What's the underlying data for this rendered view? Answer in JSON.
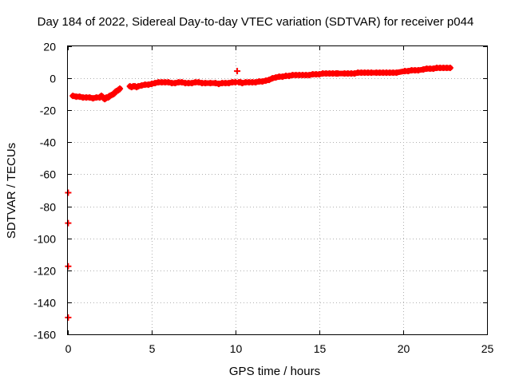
{
  "chart_data": {
    "type": "scatter",
    "title": "Day 184 of 2022, Sidereal Day-to-day VTEC variation (SDTVAR) for receiver p044",
    "xlabel": "GPS time / hours",
    "ylabel": "SDTVAR / TECUs",
    "xlim": [
      0,
      25
    ],
    "ylim": [
      -160,
      20
    ],
    "xticks": [
      0,
      5,
      10,
      15,
      20,
      25
    ],
    "yticks": [
      20,
      0,
      -20,
      -40,
      -60,
      -80,
      -100,
      -120,
      -140,
      -160
    ],
    "grid": true,
    "legend": "none",
    "marker": "plus",
    "series": [
      {
        "name": "SDTVAR",
        "color": "#ff0000",
        "x": [
          0.3,
          0.5,
          0.7,
          0.9,
          1.1,
          1.3,
          1.5,
          1.7,
          1.9,
          2.0,
          2.1,
          2.2,
          2.3,
          2.4,
          2.5,
          2.6,
          2.7,
          2.8,
          2.9,
          3.0,
          3.1,
          3.7,
          3.8,
          3.9,
          4.0,
          4.1,
          4.2,
          4.4,
          4.6,
          4.8,
          5.0,
          5.2,
          5.4,
          5.6,
          5.8,
          6.0,
          6.2,
          6.4,
          6.6,
          6.8,
          7.0,
          7.2,
          7.4,
          7.6,
          7.8,
          8.0,
          8.2,
          8.5,
          8.8,
          9.0,
          9.2,
          9.4,
          9.6,
          9.8,
          10.0,
          10.1,
          10.2,
          10.3,
          10.4,
          10.6,
          10.8,
          11.0,
          11.2,
          11.4,
          11.6,
          11.8,
          12.0,
          12.2,
          12.4,
          12.6,
          12.8,
          13.0,
          13.2,
          13.4,
          13.6,
          13.8,
          14.0,
          14.2,
          14.4,
          14.6,
          14.8,
          15.0,
          15.2,
          15.4,
          15.6,
          15.8,
          16.0,
          16.1,
          16.5,
          16.7,
          16.9,
          17.1,
          17.3,
          17.5,
          17.7,
          17.9,
          18.1,
          18.4,
          18.6,
          18.8,
          19.0,
          19.2,
          19.4,
          19.6,
          20.1,
          20.3,
          20.5,
          20.7,
          20.9,
          21.2,
          21.4,
          21.6,
          21.8,
          22.0,
          22.2,
          22.4,
          22.6,
          22.8,
          0.02,
          0.02,
          0.02,
          0.02
        ],
        "y": [
          -11,
          -11.5,
          -11.5,
          -12,
          -12,
          -12,
          -12.5,
          -12,
          -12,
          -11,
          -12,
          -13,
          -12,
          -12,
          -11,
          -10.5,
          -10,
          -9,
          -8,
          -7.5,
          -6.5,
          -5,
          -5.5,
          -5,
          -5,
          -5.5,
          -5,
          -4.5,
          -4,
          -4,
          -3.5,
          -3,
          -2.5,
          -2.5,
          -2.5,
          -2.5,
          -3,
          -3,
          -2.5,
          -2.5,
          -3,
          -3,
          -3,
          -2.5,
          -2.5,
          -3,
          -3,
          -3,
          -3,
          -3.5,
          -3,
          -3,
          -3,
          -2.5,
          -2.5,
          4.5,
          -2.5,
          -2.5,
          -3,
          -2.5,
          -2.5,
          -2.5,
          -2.5,
          -2,
          -2,
          -1.5,
          -1,
          0,
          0.5,
          1,
          1,
          1.5,
          1.5,
          2,
          2,
          2,
          2,
          2,
          2,
          2.5,
          2.5,
          2.5,
          3,
          3,
          3,
          3,
          3,
          3,
          3,
          3,
          3,
          3,
          3.5,
          3.5,
          3.5,
          3.5,
          3.5,
          3.5,
          3.5,
          3.5,
          3.5,
          3.5,
          3.5,
          3.5,
          4.5,
          4.5,
          5,
          5,
          5,
          5.5,
          6,
          6,
          6,
          6.5,
          6.5,
          6.5,
          6.5,
          6.5,
          -71.5,
          -90.5,
          -117.5,
          -149.5
        ]
      }
    ]
  }
}
